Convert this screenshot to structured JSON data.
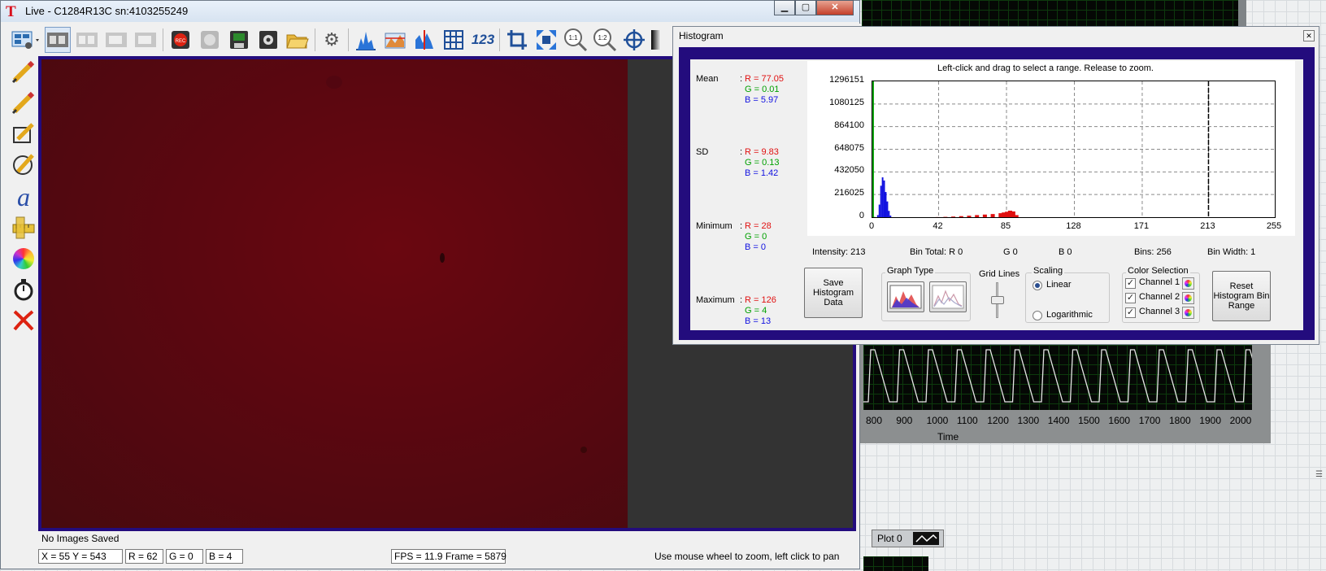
{
  "live_window": {
    "title": "Live - C1284R13C   sn:4103255249",
    "status_saved": "No Images Saved",
    "xy_readout": "X = 55  Y = 543",
    "r_readout": "R = 62",
    "g_readout": "G = 0",
    "b_readout": "B = 4",
    "fps_readout": "FPS = 11.9  Frame = 5879",
    "hint": "Use mouse wheel to zoom, left click to pan",
    "toolbar_icons": [
      "view-options-icon",
      "filmstrip-icon",
      "filmstrip-disabled-icon",
      "filmstrip-export-icon",
      "filmstrip-import-icon",
      "record-icon",
      "timer-icon",
      "save-image-icon",
      "save-settings-icon",
      "open-folder-icon",
      "settings-gears-icon",
      "histogram-icon",
      "line-profile-icon",
      "area-profile-icon",
      "grid-icon",
      "numbers-icon",
      "crop-icon",
      "fit-window-icon",
      "zoom-1-1-icon",
      "zoom-1-2-icon",
      "crosshair-icon"
    ],
    "tool_icons": [
      "pencil-icon",
      "pencil-alt-icon",
      "edit-box-icon",
      "circle-pencil-icon",
      "text-tool-icon",
      "ruler-icon",
      "color-wheel-icon",
      "stopwatch-icon",
      "clear-annotations-icon"
    ],
    "zoom_1_1": "1:1",
    "zoom_1_2": "1:2",
    "numbers_label": "123",
    "rec_label": "REC",
    "text_tool_label": "a"
  },
  "histogram": {
    "title": "Histogram",
    "hint": "Left-click and drag to select a range.  Release to zoom.",
    "stats": {
      "mean": {
        "label": "Mean",
        "r": "R = 77.05",
        "g": "G = 0.01",
        "b": "B = 5.97"
      },
      "sd": {
        "label": "SD",
        "r": "R = 9.83",
        "g": "G = 0.13",
        "b": "B = 1.42"
      },
      "minimum": {
        "label": "Minimum",
        "r": "R = 28",
        "g": "G = 0",
        "b": "B = 0"
      },
      "maximum": {
        "label": "Maximum",
        "r": "R = 126",
        "g": "G = 4",
        "b": "B = 13"
      },
      "colon": ":"
    },
    "info": {
      "intensity": "Intensity: 213",
      "bin_total": "Bin Total: R 0",
      "g": "G 0",
      "b": "B 0",
      "bins": "Bins: 256",
      "bin_width": "Bin Width: 1"
    },
    "save_button": "Save Histogram Data",
    "graph_type_label": "Graph Type",
    "grid_lines_label": "Grid Lines",
    "grid_lines_level": 0.5,
    "scaling_label": "Scaling",
    "scaling_options": [
      "Linear",
      "Logarithmic"
    ],
    "scaling_selected": "Linear",
    "color_selection_label": "Color Selection",
    "channels": [
      {
        "label": "Channel 1",
        "checked": true
      },
      {
        "label": "Channel 2",
        "checked": true
      },
      {
        "label": "Channel 3",
        "checked": true
      }
    ],
    "reset_button": "Reset Histogram Bin Range"
  },
  "chart_data": {
    "type": "bar",
    "title": "",
    "xlabel": "",
    "ylabel": "",
    "xlim": [
      0,
      255
    ],
    "ylim": [
      0,
      1296151
    ],
    "x_ticks": [
      0,
      42,
      85,
      128,
      171,
      213,
      255
    ],
    "y_ticks": [
      0,
      216025,
      432050,
      648075,
      864100,
      1080125,
      1296151
    ],
    "x_tick_labels": [
      "0",
      "42",
      "85",
      "128",
      "171",
      "213",
      "255"
    ],
    "y_tick_labels": [
      "0",
      "216025",
      "432050",
      "648075",
      "864100",
      "1080125",
      "1296151"
    ],
    "grid": true,
    "cursor_x": 213,
    "series": [
      {
        "color": "#00a000",
        "x": [
          0,
          1
        ],
        "values": [
          1296151,
          2000
        ]
      },
      {
        "color": "#1010e0",
        "x": [
          3,
          4,
          5,
          6,
          7,
          8,
          9,
          10,
          11
        ],
        "values": [
          20000,
          120000,
          300000,
          380000,
          350000,
          240000,
          150000,
          60000,
          15000
        ]
      },
      {
        "color": "#e01010",
        "x": [
          40,
          45,
          50,
          55,
          60,
          65,
          70,
          75,
          80,
          82,
          84,
          86,
          88,
          90
        ],
        "values": [
          1000,
          3000,
          6000,
          10000,
          14000,
          20000,
          25000,
          30000,
          38000,
          45000,
          52000,
          62000,
          55000,
          20000
        ]
      }
    ]
  },
  "background": {
    "plot_legend": "Plot 0",
    "time_label": "Time",
    "time_ticks": [
      "800",
      "900",
      "1000",
      "1100",
      "1200",
      "1300",
      "1400",
      "1500",
      "1600",
      "1700",
      "1800",
      "1900",
      "2000"
    ]
  }
}
